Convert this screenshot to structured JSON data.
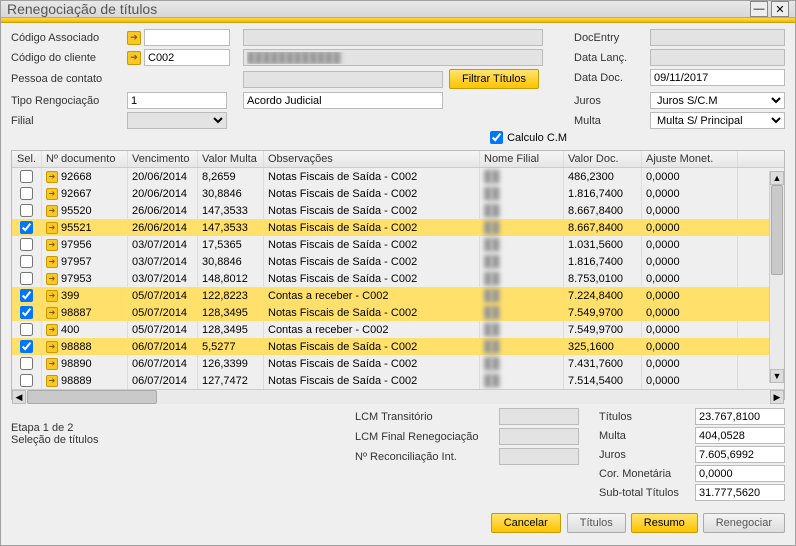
{
  "window": {
    "title": "Renegociação de títulos"
  },
  "form": {
    "labels": {
      "codigoAssociado": "Código Associado",
      "codigoCliente": "Código do cliente",
      "pessoaContato": "Pessoa de contato",
      "tipoRenegociacao": "Tipo Rengociação",
      "filial": "Filial",
      "docEntry": "DocEntry",
      "dataLanc": "Data Lanç.",
      "dataDoc": "Data Doc.",
      "calculoCM": "Calculo C.M",
      "juros": "Juros",
      "multa": "Multa"
    },
    "values": {
      "codigoCliente": "C002",
      "tipoRenegociacaoNum": "1",
      "tipoRenegociacaoDesc": "Acordo Judicial",
      "dataDoc": "09/11/2017",
      "jurosSel": "Juros S/C.M",
      "multaSel": "Multa S/ Principal"
    },
    "filtrarTitulos": "Filtrar Títulos"
  },
  "table": {
    "headers": {
      "sel": "Sel.",
      "doc": "Nº documento",
      "venc": "Vencimento",
      "multa": "Valor Multa",
      "obs": "Observações",
      "filial": "Nome Filial",
      "valdoc": "Valor Doc.",
      "ajuste": "Ajuste Monet."
    },
    "rows": [
      {
        "sel": false,
        "doc": "92668",
        "venc": "20/06/2014",
        "multa": "8,2659",
        "obs": "Notas Fiscais de Saída - C002",
        "filial": "",
        "valdoc": "486,2300",
        "ajuste": "0,0000"
      },
      {
        "sel": false,
        "doc": "92667",
        "venc": "20/06/2014",
        "multa": "30,8846",
        "obs": "Notas Fiscais de Saída - C002",
        "filial": "",
        "valdoc": "1.816,7400",
        "ajuste": "0,0000"
      },
      {
        "sel": false,
        "doc": "95520",
        "venc": "26/06/2014",
        "multa": "147,3533",
        "obs": "Notas Fiscais de Saída - C002",
        "filial": "",
        "valdoc": "8.667,8400",
        "ajuste": "0,0000"
      },
      {
        "sel": true,
        "doc": "95521",
        "venc": "26/06/2014",
        "multa": "147,3533",
        "obs": "Notas Fiscais de Saída - C002",
        "filial": "",
        "valdoc": "8.667,8400",
        "ajuste": "0,0000"
      },
      {
        "sel": false,
        "doc": "97956",
        "venc": "03/07/2014",
        "multa": "17,5365",
        "obs": "Notas Fiscais de Saída - C002",
        "filial": "",
        "valdoc": "1.031,5600",
        "ajuste": "0,0000"
      },
      {
        "sel": false,
        "doc": "97957",
        "venc": "03/07/2014",
        "multa": "30,8846",
        "obs": "Notas Fiscais de Saída - C002",
        "filial": "",
        "valdoc": "1.816,7400",
        "ajuste": "0,0000"
      },
      {
        "sel": false,
        "doc": "97953",
        "venc": "03/07/2014",
        "multa": "148,8012",
        "obs": "Notas Fiscais de Saída - C002",
        "filial": "",
        "valdoc": "8.753,0100",
        "ajuste": "0,0000"
      },
      {
        "sel": true,
        "doc": "399",
        "venc": "05/07/2014",
        "multa": "122,8223",
        "obs": "Contas a receber  - C002",
        "filial": "",
        "valdoc": "7.224,8400",
        "ajuste": "0,0000"
      },
      {
        "sel": true,
        "doc": "98887",
        "venc": "05/07/2014",
        "multa": "128,3495",
        "obs": "Notas Fiscais de Saída - C002",
        "filial": "",
        "valdoc": "7.549,9700",
        "ajuste": "0,0000"
      },
      {
        "sel": false,
        "doc": "400",
        "venc": "05/07/2014",
        "multa": "128,3495",
        "obs": "Contas a receber  - C002",
        "filial": "",
        "valdoc": "7.549,9700",
        "ajuste": "0,0000"
      },
      {
        "sel": true,
        "doc": "98888",
        "venc": "06/07/2014",
        "multa": "5,5277",
        "obs": "Notas Fiscais de Saída - C002",
        "filial": "",
        "valdoc": "325,1600",
        "ajuste": "0,0000"
      },
      {
        "sel": false,
        "doc": "98890",
        "venc": "06/07/2014",
        "multa": "126,3399",
        "obs": "Notas Fiscais de Saída - C002",
        "filial": "",
        "valdoc": "7.431,7600",
        "ajuste": "0,0000"
      },
      {
        "sel": false,
        "doc": "98889",
        "venc": "06/07/2014",
        "multa": "127,7472",
        "obs": "Notas Fiscais de Saída - C002",
        "filial": "",
        "valdoc": "7.514,5400",
        "ajuste": "0,0000"
      }
    ]
  },
  "footer": {
    "etapa": "Etapa 1 de 2",
    "etapaSub": "Seleção de títulos",
    "lcm": {
      "transitorio": "LCM Transitório",
      "finalReneg": "LCM Final Renegociação",
      "reconcInt": "Nº Reconciliação Int."
    },
    "totals": {
      "titulosLbl": "Títulos",
      "titulosVal": "23.767,8100",
      "multaLbl": "Multa",
      "multaVal": "404,0528",
      "jurosLbl": "Juros",
      "jurosVal": "7.605,6992",
      "corMonLbl": "Cor. Monetária",
      "corMonVal": "0,0000",
      "subtotalLbl": "Sub-total Títulos",
      "subtotalVal": "31.777,5620"
    },
    "buttons": {
      "cancelar": "Cancelar",
      "titulos": "Títulos",
      "resumo": "Resumo",
      "renegociar": "Renegociar"
    }
  }
}
